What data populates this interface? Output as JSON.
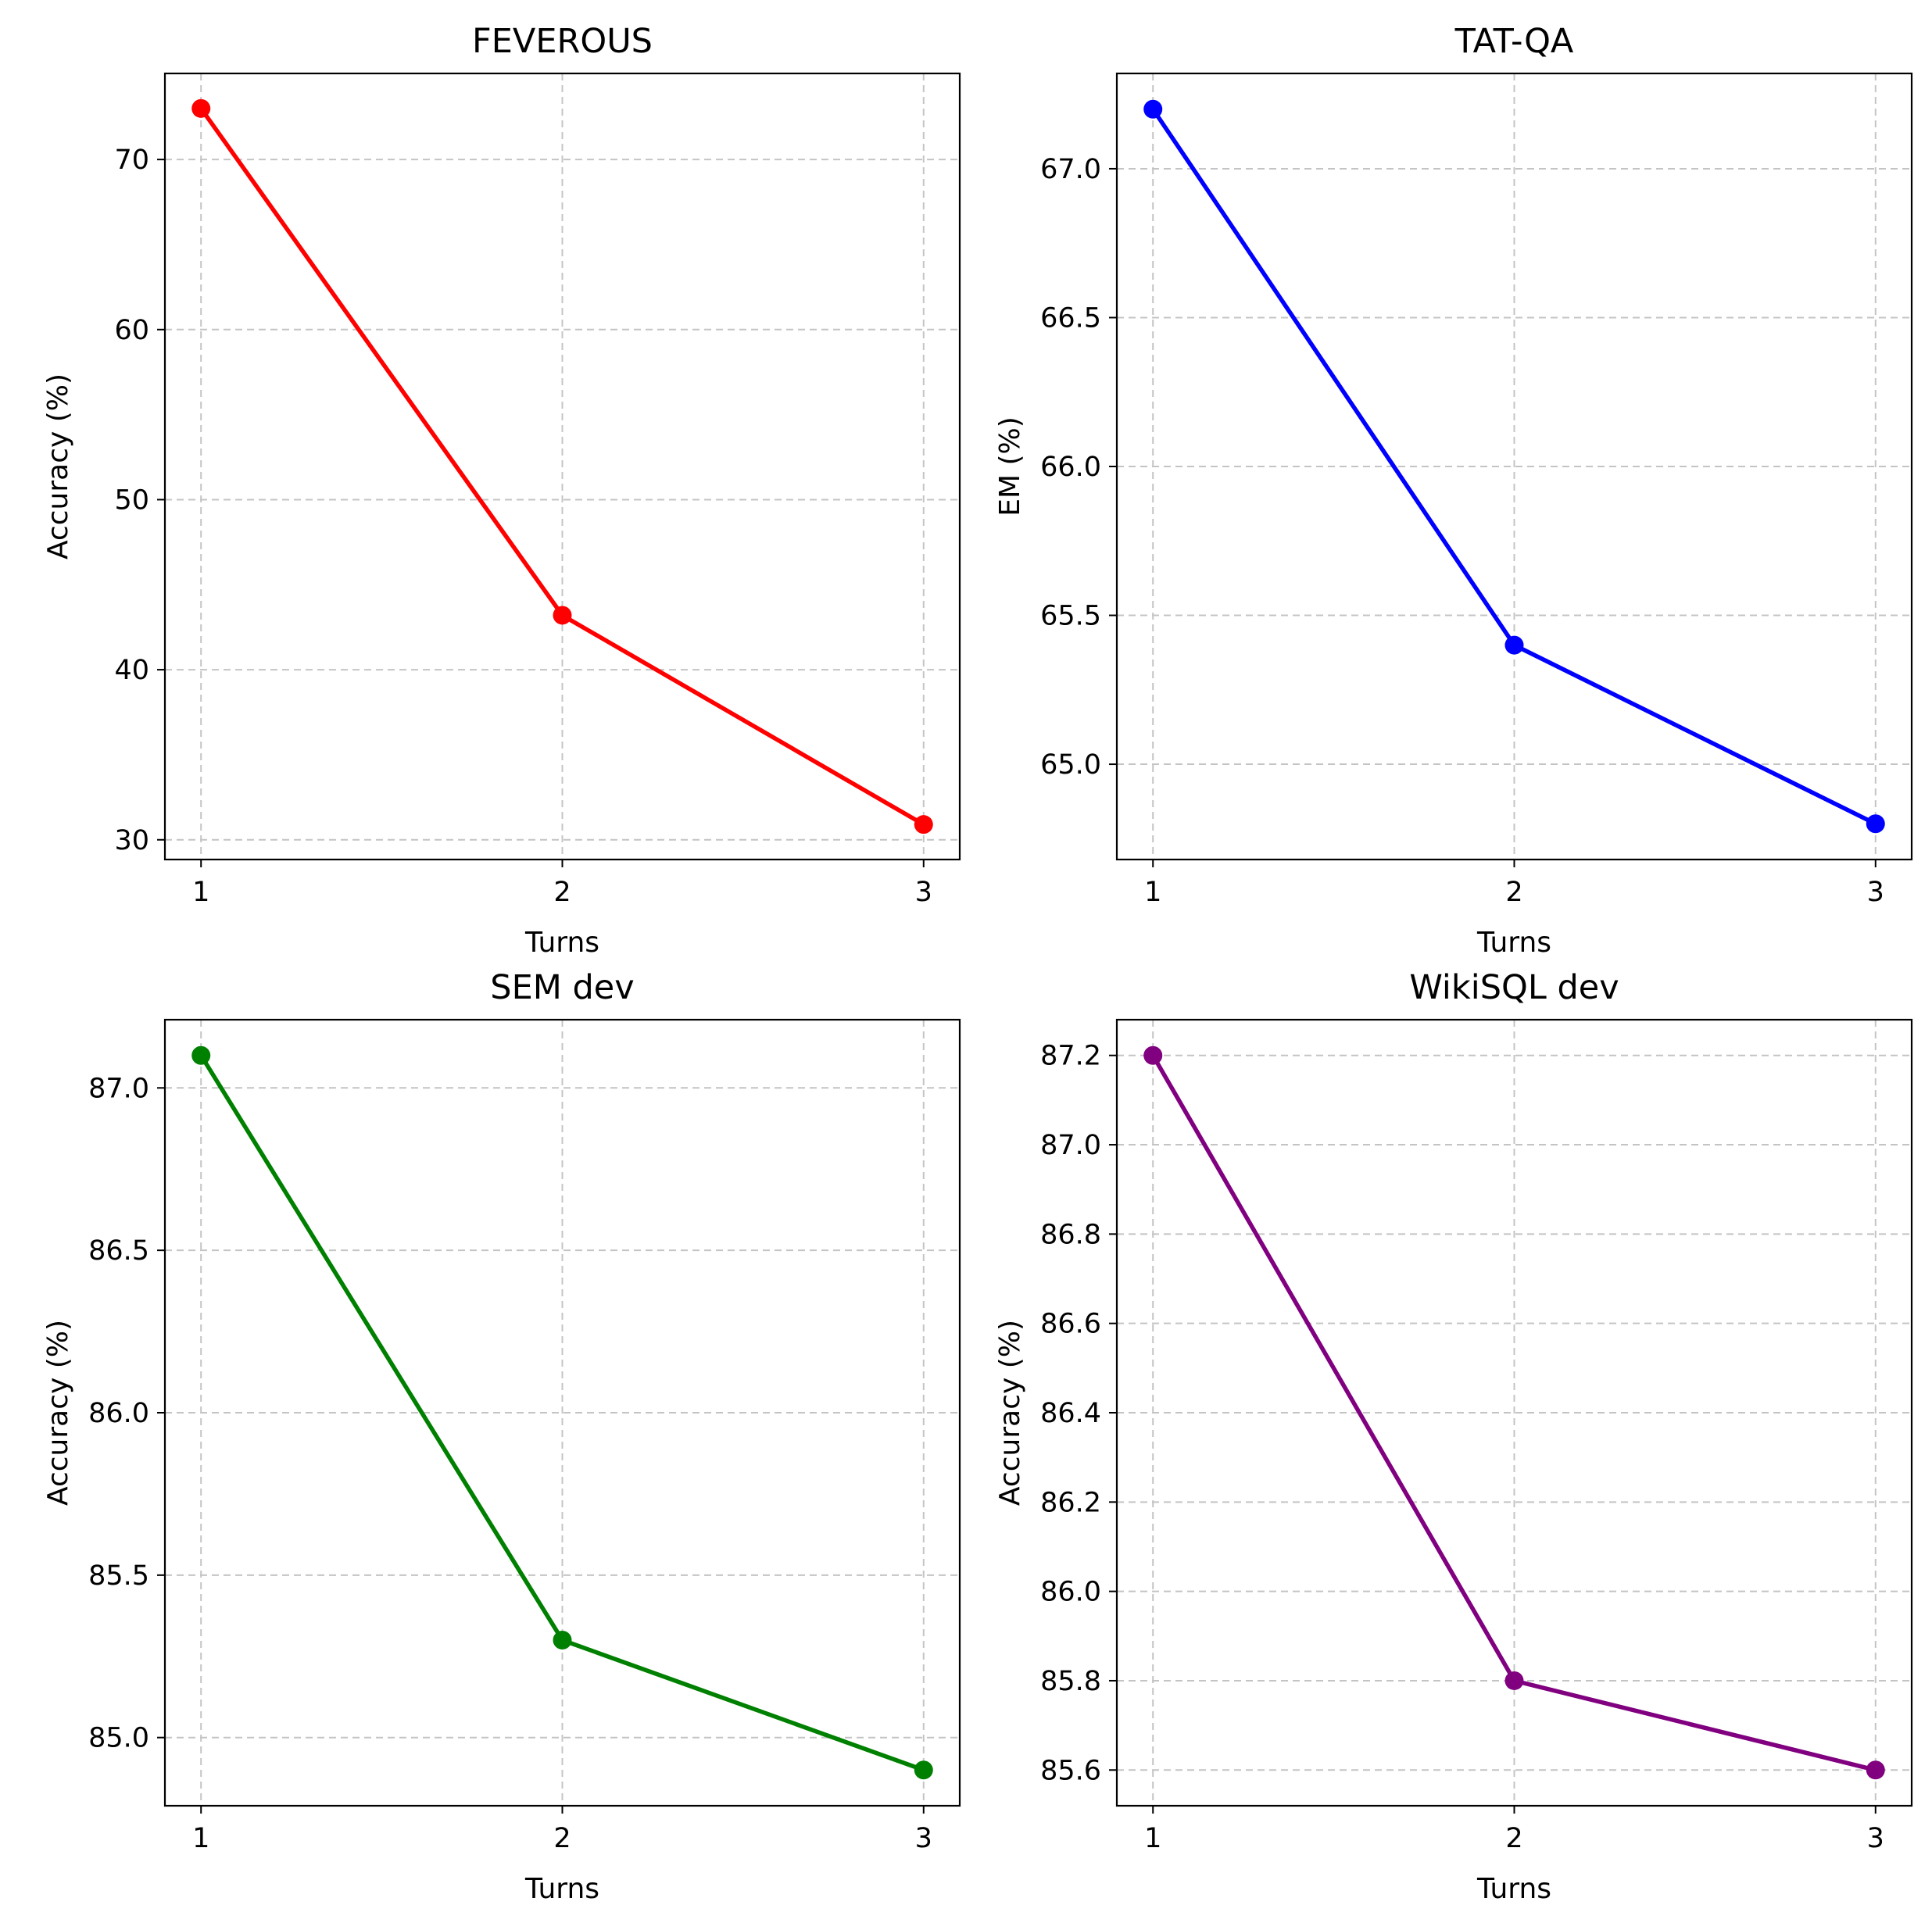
{
  "chart_data": [
    {
      "type": "line",
      "title": "FEVEROUS",
      "xlabel": "Turns",
      "ylabel": "Accuracy (%)",
      "x": [
        1,
        2,
        3
      ],
      "values": [
        73.0,
        43.2,
        30.9
      ],
      "color": "#ff0000",
      "xticks": [
        1,
        2,
        3
      ],
      "xlim": [
        0.9,
        3.1
      ],
      "yticks": [
        30,
        40,
        50,
        60,
        70
      ],
      "ytick_labels": [
        "30",
        "40",
        "50",
        "60",
        "70"
      ],
      "ylim": [
        28.84,
        75.06
      ],
      "grid": true
    },
    {
      "type": "line",
      "title": "TAT-QA",
      "xlabel": "Turns",
      "ylabel": "EM (%)",
      "x": [
        1,
        2,
        3
      ],
      "values": [
        67.2,
        65.4,
        64.8
      ],
      "color": "#0000ff",
      "xticks": [
        1,
        2,
        3
      ],
      "xlim": [
        0.9,
        3.1
      ],
      "yticks": [
        65.0,
        65.5,
        66.0,
        66.5,
        67.0
      ],
      "ytick_labels": [
        "65.0",
        "65.5",
        "66.0",
        "66.5",
        "67.0"
      ],
      "ylim": [
        64.68,
        67.32
      ],
      "grid": true
    },
    {
      "type": "line",
      "title": "SEM dev",
      "xlabel": "Turns",
      "ylabel": "Accuracy (%)",
      "x": [
        1,
        2,
        3
      ],
      "values": [
        87.1,
        85.3,
        84.9
      ],
      "color": "#008000",
      "xticks": [
        1,
        2,
        3
      ],
      "xlim": [
        0.9,
        3.1
      ],
      "yticks": [
        85.0,
        85.5,
        86.0,
        86.5,
        87.0
      ],
      "ytick_labels": [
        "85.0",
        "85.5",
        "86.0",
        "86.5",
        "87.0"
      ],
      "ylim": [
        84.79,
        87.21
      ],
      "grid": true
    },
    {
      "type": "line",
      "title": "WikiSQL dev",
      "xlabel": "Turns",
      "ylabel": "Accuracy (%)",
      "x": [
        1,
        2,
        3
      ],
      "values": [
        87.2,
        85.8,
        85.6
      ],
      "color": "#800080",
      "xticks": [
        1,
        2,
        3
      ],
      "xlim": [
        0.9,
        3.1
      ],
      "yticks": [
        85.6,
        85.8,
        86.0,
        86.2,
        86.4,
        86.6,
        86.8,
        87.0,
        87.2
      ],
      "ytick_labels": [
        "85.6",
        "85.8",
        "86.0",
        "86.2",
        "86.4",
        "86.6",
        "86.8",
        "87.0",
        "87.2"
      ],
      "ylim": [
        85.52,
        87.28
      ],
      "grid": true
    }
  ]
}
